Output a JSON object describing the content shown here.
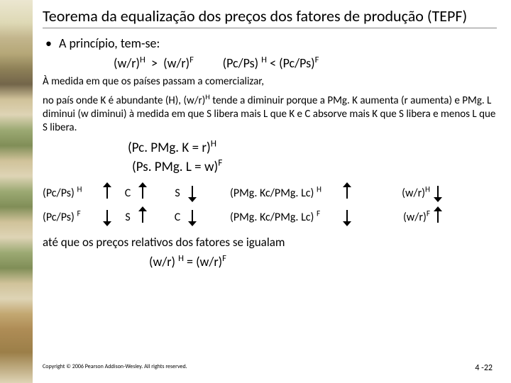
{
  "title": "Teorema da equalização dos preços dos fatores de produção  (TEPF)",
  "bullet": "•",
  "bullet_text": "A princípio, tem-se:",
  "eq1_left": "(w/r)",
  "eq1_supH": "H",
  "eq1_gt": "  >  ",
  "eq1_right": "(w/r)",
  "eq1_supF": "F",
  "eq1_space": "          ",
  "eq1b_left": "(Pc/Ps) ",
  "eq1b_lt": " < ",
  "eq1b_right": "(Pc/Ps)",
  "para1": "À medida em que os países passam a comercializar,",
  "para2_a": "no país onde K é abundante (H), (w/r)",
  "para2_b": " tende a diminuir porque a PMg. K aumenta (r aumenta)  e  PMg. L diminui (w diminui) à medida em que S libera mais L que K e C absorve mais K que S libera e menos L que S libera.",
  "eq_c1_a": "(Pc. PMg. K = r)",
  "eq_c2_a": "(Ps. PMg. L = w)",
  "flow": {
    "r1": {
      "left_a": "(Pc/Ps) ",
      "left_sup": "H",
      "c": "C",
      "s": "S",
      "big_a": "(PMg. Kc/PMg. Lc) ",
      "big_sup": "H",
      "right_a": "(w/r)",
      "right_sup": "H"
    },
    "r2": {
      "left_a": "(Pc/Ps) ",
      "left_sup": "F",
      "c": "S",
      "s": "C",
      "big_a": "(PMg. Kc/PMg. Lc) ",
      "big_sup": "F",
      "right_a": "(w/r)",
      "right_sup": "F"
    }
  },
  "final": "até que os preços relativos dos fatores se igualam",
  "final_eq_a": "(w/r) ",
  "final_eq_mid": "  =  ",
  "final_eq_b": "(w/r)",
  "copyright": "Copyright © 2006 Pearson Addison-Wesley. All rights reserved.",
  "pagenum": "4 -22"
}
